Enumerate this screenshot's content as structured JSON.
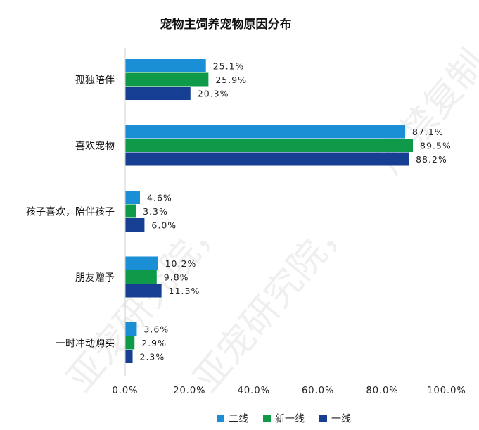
{
  "chart_data": {
    "type": "bar",
    "orientation": "horizontal",
    "title": "宠物主饲养宠物原因分布",
    "categories": [
      "孤独陪伴",
      "喜欢宠物",
      "孩子喜欢，陪伴孩子",
      "朋友赠予",
      "一时冲动购买"
    ],
    "series": [
      {
        "name": "二线",
        "color": "#1a8fd6",
        "values": [
          25.1,
          87.1,
          4.6,
          10.2,
          3.6
        ]
      },
      {
        "name": "新一线",
        "color": "#0f9a4a",
        "values": [
          25.9,
          89.5,
          3.3,
          9.8,
          2.9
        ]
      },
      {
        "name": "一线",
        "color": "#163f94",
        "values": [
          20.3,
          88.2,
          6.0,
          11.3,
          2.3
        ]
      }
    ],
    "x_ticks": [
      0,
      20,
      40,
      60,
      80,
      100
    ],
    "x_tick_labels": [
      "0.0%",
      "20.0%",
      "40.0%",
      "60.0%",
      "80.0%",
      "100.0%"
    ],
    "xlim": [
      0,
      100
    ],
    "value_format": "percent-1dp",
    "grid": false,
    "legend_position": "bottom"
  },
  "watermark": {
    "text_1": "亚宠研究院，",
    "text_2": "严禁复制"
  }
}
